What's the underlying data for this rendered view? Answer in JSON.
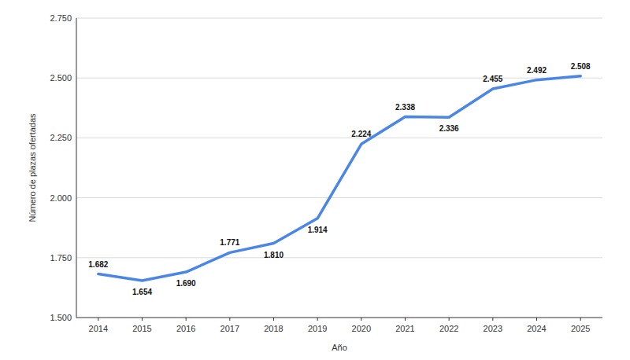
{
  "chart_data": {
    "type": "line",
    "x_label": "Año",
    "y_label": "Número de plazas ofertadas",
    "categories": [
      "2014",
      "2015",
      "2016",
      "2017",
      "2018",
      "2019",
      "2020",
      "2021",
      "2022",
      "2023",
      "2024",
      "2025"
    ],
    "values": [
      1682,
      1654,
      1690,
      1771,
      1810,
      1914,
      2224,
      2338,
      2336,
      2455,
      2492,
      2508
    ],
    "value_labels": [
      "1.682",
      "1.654",
      "1.690",
      "1.771",
      "1.810",
      "1.914",
      "2.224",
      "2.338",
      "2.336",
      "2.455",
      "2.492",
      "2.508"
    ],
    "color": "#4a86e8",
    "ylim": [
      1500,
      2750
    ],
    "yticks": [
      {
        "value": 1500,
        "label": "1.500"
      },
      {
        "value": 1750,
        "label": "1.750"
      },
      {
        "value": 2000,
        "label": "2.000"
      },
      {
        "value": 2250,
        "label": "2.250"
      },
      {
        "value": 2500,
        "label": "2.500"
      },
      {
        "value": 2750,
        "label": "2.750"
      }
    ],
    "grid": true,
    "data_labels": true
  }
}
